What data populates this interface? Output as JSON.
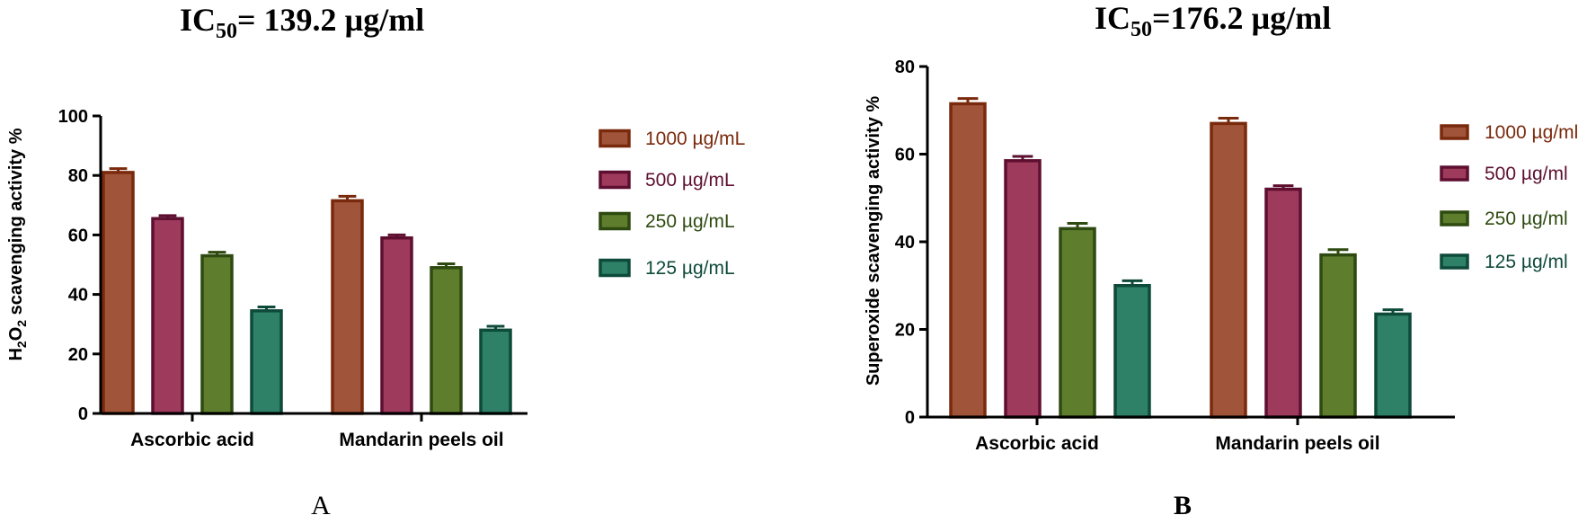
{
  "chart_data": [
    {
      "type": "bar",
      "panel": "A",
      "title_main": "IC",
      "title_sub": "50",
      "title_rest": "= 139.2 µg/ml",
      "ylabel_parts": [
        "H",
        "2",
        "O",
        "2",
        " scavenging activity %"
      ],
      "xlabel": "",
      "categories": [
        "Ascorbic acid",
        "Mandarin peels oil"
      ],
      "ylim": [
        0,
        100
      ],
      "yticks": [
        "0",
        "20",
        "40",
        "60",
        "80",
        "100"
      ],
      "legend_position": "right",
      "series": [
        {
          "name": "1000  µg/mL",
          "values": [
            81,
            71.5
          ],
          "errors": [
            1.3,
            1.5
          ],
          "fill": "#a0543a",
          "stroke": "#7a2a0c",
          "text": "#7a2a0c"
        },
        {
          "name": "500  µg/mL",
          "values": [
            65.5,
            59
          ],
          "errors": [
            1.0,
            1.0
          ],
          "fill": "#9e3a5c",
          "stroke": "#5e0f30",
          "text": "#5e0f30"
        },
        {
          "name": "250  µg/mL",
          "values": [
            53,
            49
          ],
          "errors": [
            1.2,
            1.3
          ],
          "fill": "#5e7e2e",
          "stroke": "#2e4a10",
          "text": "#2e4a10"
        },
        {
          "name": "125  µg/mL",
          "values": [
            34.5,
            28
          ],
          "errors": [
            1.3,
            1.3
          ],
          "fill": "#2e8066",
          "stroke": "#0e4a3a",
          "text": "#0e4a3a"
        }
      ]
    },
    {
      "type": "bar",
      "panel": "B",
      "title_main": "IC",
      "title_sub": "50",
      "title_rest": "=176.2 µg/ml",
      "ylabel": "Superoxide scavenging activity %",
      "xlabel": "",
      "categories": [
        "Ascorbic acid",
        "Mandarin peels oil"
      ],
      "ylim": [
        0,
        80
      ],
      "yticks": [
        "0",
        "20",
        "40",
        "60",
        "80"
      ],
      "legend_position": "right",
      "series": [
        {
          "name": "1000 µg/ml",
          "values": [
            71.5,
            67
          ],
          "errors": [
            1.2,
            1.2
          ],
          "fill": "#a0543a",
          "stroke": "#7a2a0c",
          "text": "#7a2a0c"
        },
        {
          "name": "500 µg/ml",
          "values": [
            58.5,
            52
          ],
          "errors": [
            1.0,
            0.8
          ],
          "fill": "#9e3a5c",
          "stroke": "#5e0f30",
          "text": "#5e0f30"
        },
        {
          "name": "250 µg/ml",
          "values": [
            43,
            37
          ],
          "errors": [
            1.2,
            1.2
          ],
          "fill": "#5e7e2e",
          "stroke": "#2e4a10",
          "text": "#2e4a10"
        },
        {
          "name": "125 µg/ml",
          "values": [
            30,
            23.5
          ],
          "errors": [
            1.1,
            1.0
          ],
          "fill": "#2e8066",
          "stroke": "#0e4a3a",
          "text": "#0e4a3a"
        }
      ]
    }
  ]
}
